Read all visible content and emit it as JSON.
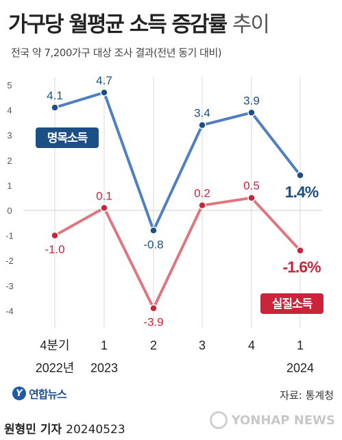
{
  "header": {
    "title_main": "가구당 월평균 소득 증감률",
    "title_light": "추이",
    "subtitle": "전국 약 7,200가구 대상 조사 결과(전년 동기 대비)"
  },
  "chart_data": {
    "type": "line",
    "categories": [
      {
        "line1": "4분기",
        "line2": "2022년"
      },
      {
        "line1": "1",
        "line2": "2023"
      },
      {
        "line1": "2",
        "line2": ""
      },
      {
        "line1": "3",
        "line2": ""
      },
      {
        "line1": "4",
        "line2": ""
      },
      {
        "line1": "1",
        "line2": "2024"
      }
    ],
    "yticks": [
      5,
      4,
      3,
      2,
      1,
      0,
      -1,
      -2,
      -3,
      -4
    ],
    "ylim": [
      -4,
      5
    ],
    "grid": "vertical",
    "series": [
      {
        "name": "명목소득",
        "color": "#4f7fc3",
        "label_color": "#1b4f86",
        "values": [
          4.1,
          4.7,
          -0.8,
          3.4,
          3.9,
          1.4
        ],
        "value_labels": [
          "4.1",
          "4.7",
          "-0.8",
          "3.4",
          "3.9",
          "1.4%"
        ],
        "label_pos": [
          "above",
          "above",
          "below",
          "above",
          "above",
          "below"
        ],
        "last_bold": true
      },
      {
        "name": "실질소득",
        "color": "#e0757d",
        "label_color": "#c8253a",
        "values": [
          -1.0,
          0.1,
          -3.9,
          0.2,
          0.5,
          -1.6
        ],
        "value_labels": [
          "-1.0",
          "0.1",
          "-3.9",
          "0.2",
          "0.5",
          "-1.6%"
        ],
        "label_pos": [
          "below",
          "above",
          "below",
          "above",
          "above",
          "below"
        ],
        "last_bold": true
      }
    ]
  },
  "footer": {
    "logo_text": "연합뉴스",
    "source": "자료: 통계청",
    "reporter": "원형민 기자",
    "date": "20240523",
    "watermark": "YONHAP NEWS"
  }
}
